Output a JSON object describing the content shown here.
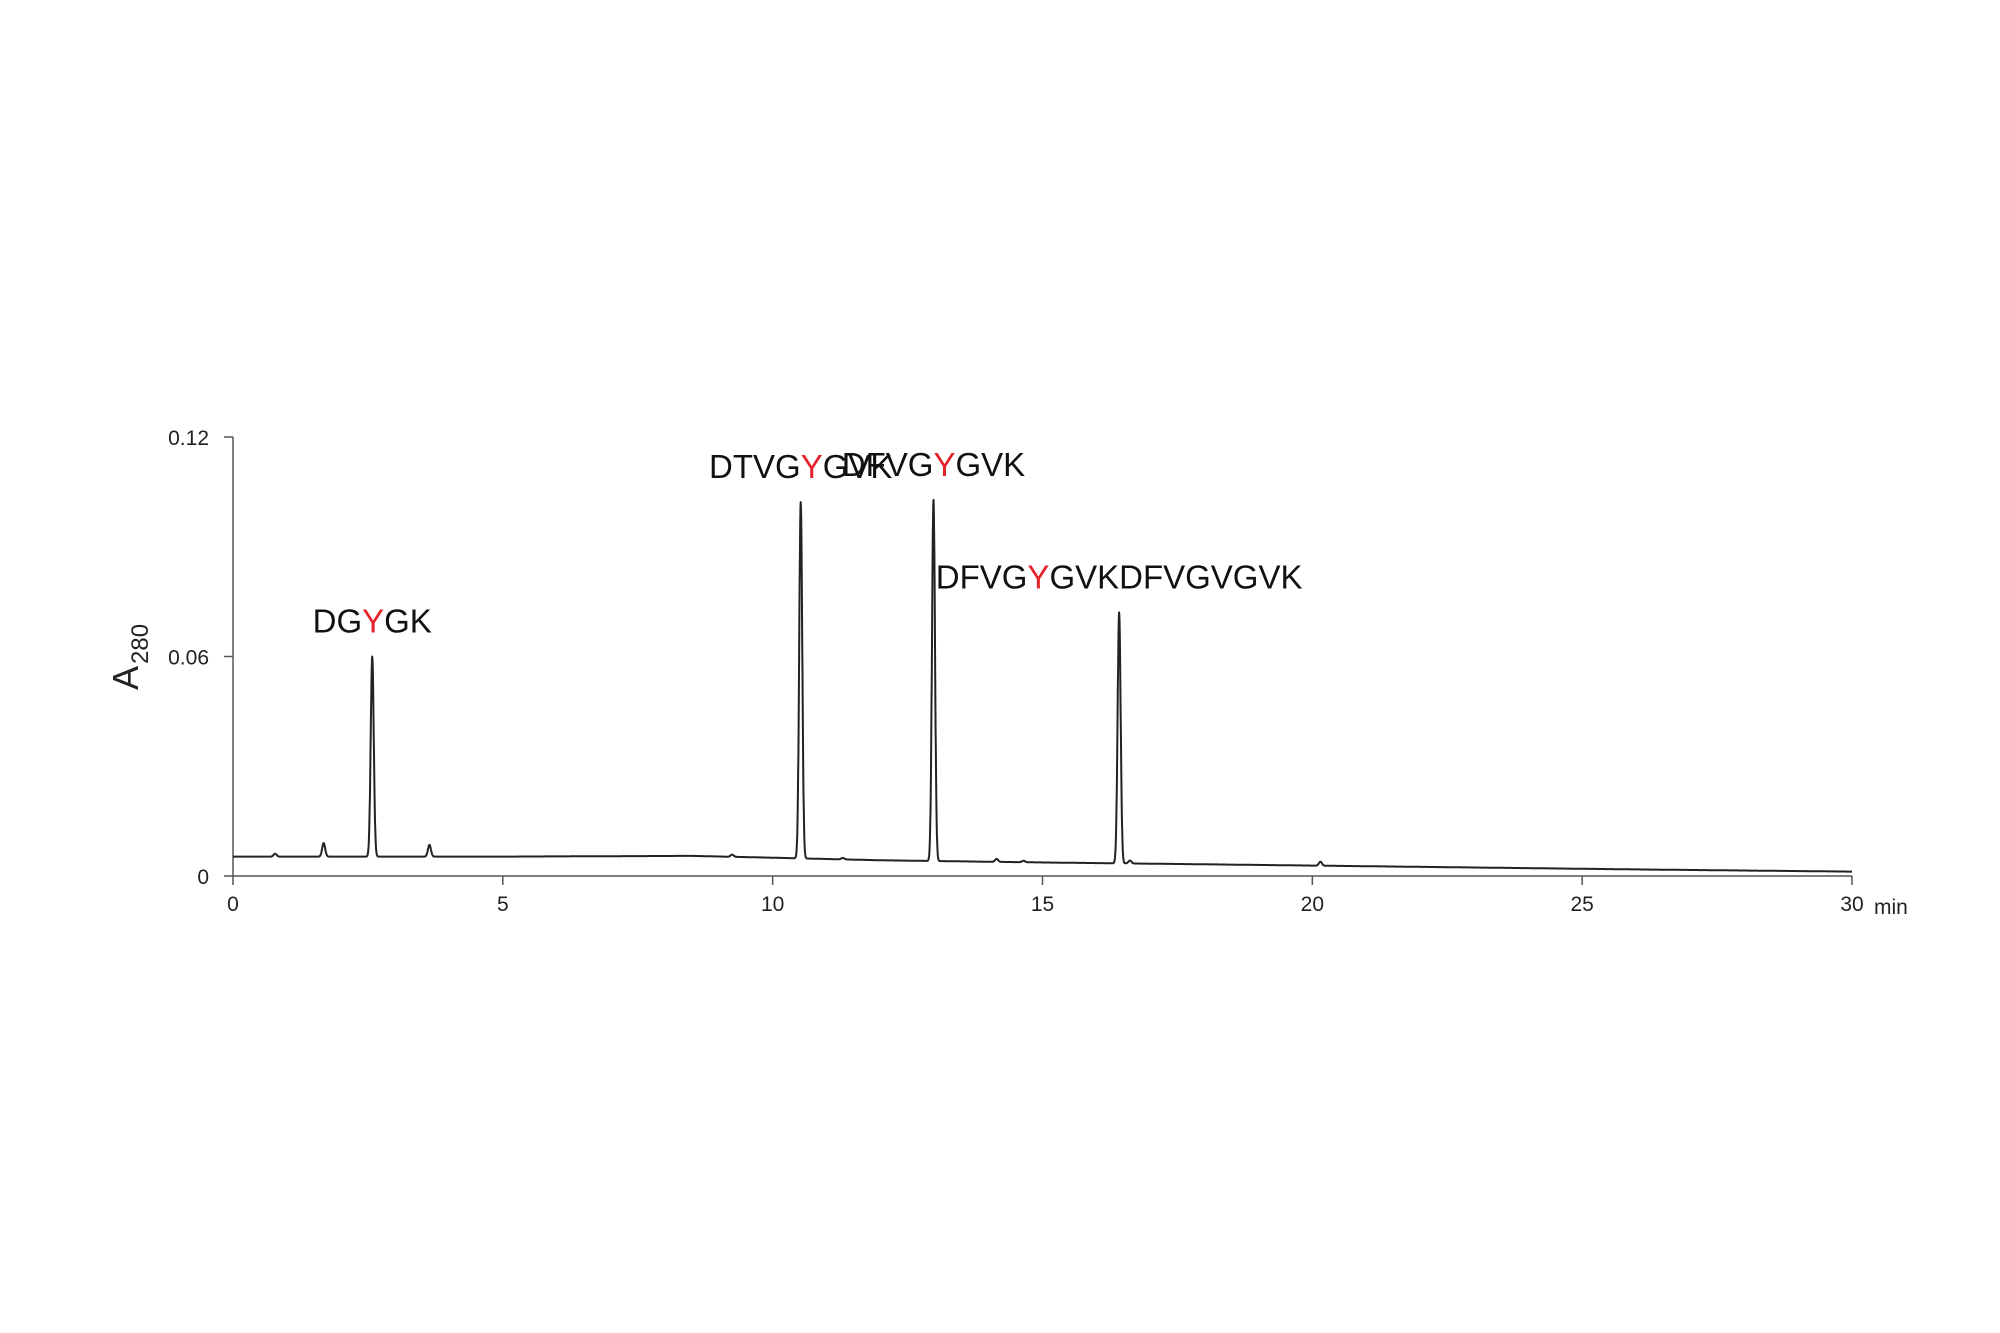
{
  "chart_data": {
    "type": "line",
    "title": "",
    "xlabel": "min",
    "ylabel": {
      "main": "A",
      "subscript": "280"
    },
    "xlim": [
      0,
      30
    ],
    "ylim": [
      0,
      0.12
    ],
    "x_ticks": [
      "0",
      "5",
      "10",
      "15",
      "20",
      "25",
      "30"
    ],
    "y_ticks": [
      "0",
      "0.06",
      "0.12"
    ],
    "grid": false,
    "colors": {
      "trace": "#222222",
      "highlight": "#e4232b",
      "text": "#111111"
    },
    "baseline": {
      "x": [
        0,
        5,
        8.5,
        10,
        12,
        15,
        18,
        22,
        26,
        30
      ],
      "y": [
        0.0053,
        0.0053,
        0.0055,
        0.005,
        0.0043,
        0.0037,
        0.0032,
        0.0025,
        0.0018,
        0.0012
      ]
    },
    "peaks": [
      {
        "x": 0.78,
        "height": 0.0008
      },
      {
        "x": 1.68,
        "height": 0.0037
      },
      {
        "x": 2.58,
        "height": 0.0547,
        "label": [
          {
            "text": "DG"
          },
          {
            "text": "Y",
            "hl": true
          },
          {
            "text": "GK"
          }
        ]
      },
      {
        "x": 3.64,
        "height": 0.0032
      },
      {
        "x": 9.25,
        "height": 0.0006
      },
      {
        "x": 10.52,
        "height": 0.0974,
        "label": [
          {
            "text": "DTVG"
          },
          {
            "text": "Y",
            "hl": true
          },
          {
            "text": "GVK"
          }
        ]
      },
      {
        "x": 11.3,
        "height": 0.0004
      },
      {
        "x": 12.98,
        "height": 0.0987,
        "label": [
          {
            "text": "DFVG"
          },
          {
            "text": "Y",
            "hl": true
          },
          {
            "text": "GVK"
          }
        ]
      },
      {
        "x": 14.15,
        "height": 0.0008
      },
      {
        "x": 14.65,
        "height": 0.0004
      },
      {
        "x": 16.42,
        "height": 0.0686,
        "label": [
          {
            "text": "DFVG"
          },
          {
            "text": "Y",
            "hl": true
          },
          {
            "text": "GVKDFVGVGVK"
          }
        ]
      },
      {
        "x": 16.62,
        "height": 0.0008
      },
      {
        "x": 20.15,
        "height": 0.0011
      }
    ]
  }
}
